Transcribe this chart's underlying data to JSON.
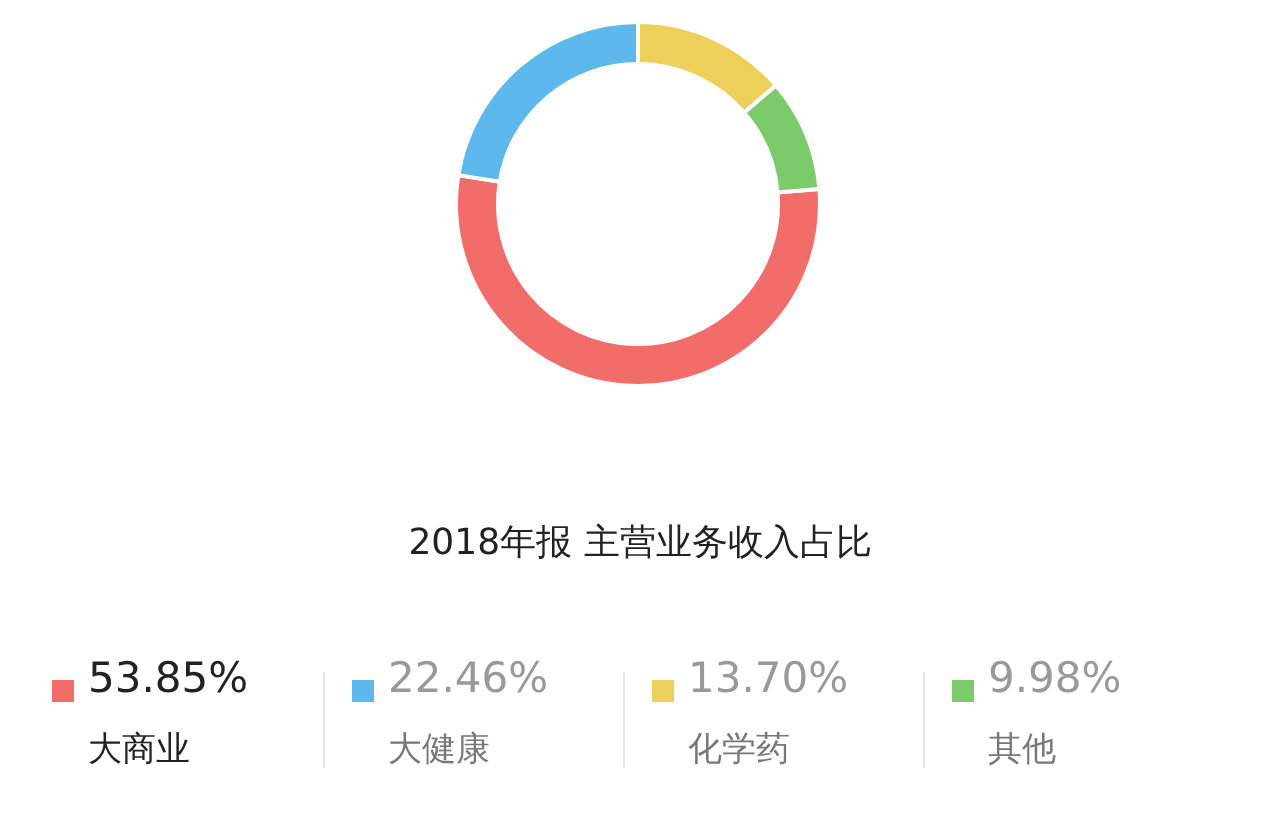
{
  "chart_data": {
    "type": "donut",
    "title": "2018年报 主营业务收入占比",
    "categories": [
      "大商业",
      "大健康",
      "化学药",
      "其他"
    ],
    "values": [
      53.85,
      22.46,
      13.7,
      9.98
    ],
    "value_labels": [
      "53.85%",
      "22.46%",
      "13.70%",
      "9.98%"
    ],
    "colors": [
      "#f26d6a",
      "#5db8ee",
      "#ecd05a",
      "#7ccb6b"
    ],
    "legend": "bottom"
  }
}
